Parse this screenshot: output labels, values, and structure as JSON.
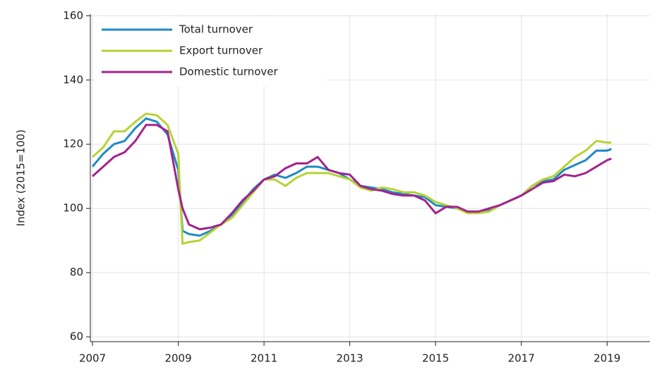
{
  "chart_data": {
    "type": "line",
    "y_label": "Index (2015=100)",
    "x": [
      2007,
      2007.25,
      2007.5,
      2007.75,
      2008,
      2008.25,
      2008.5,
      2008.75,
      2009,
      2009.1,
      2009.25,
      2009.5,
      2009.75,
      2010,
      2010.25,
      2010.5,
      2010.75,
      2011,
      2011.25,
      2011.5,
      2011.75,
      2012,
      2012.25,
      2012.5,
      2012.75,
      2013,
      2013.25,
      2013.5,
      2013.75,
      2014,
      2014.25,
      2014.5,
      2014.75,
      2015,
      2015.25,
      2015.5,
      2015.75,
      2016,
      2016.25,
      2016.5,
      2016.75,
      2017,
      2017.25,
      2017.5,
      2017.75,
      2018,
      2018.25,
      2018.5,
      2018.75,
      2019,
      2019.1
    ],
    "series": [
      {
        "name": "Total turnover",
        "color": "#1f8bc4",
        "values": [
          113,
          117,
          120,
          121,
          125,
          128,
          127,
          123,
          112,
          93,
          92,
          91.5,
          93,
          95,
          98,
          102,
          106,
          109,
          110.5,
          109.5,
          111,
          113,
          113,
          112,
          111,
          109,
          107,
          106.5,
          106,
          105,
          104.5,
          104,
          103.5,
          101,
          100.5,
          100,
          99,
          99,
          99.5,
          101,
          102.5,
          104,
          107,
          108.5,
          109,
          112,
          113.5,
          115,
          118,
          118,
          118.5
        ]
      },
      {
        "name": "Export turnover",
        "color": "#b5d334",
        "values": [
          116,
          119,
          124,
          124,
          127,
          129.5,
          129,
          126,
          117,
          89,
          89.5,
          90,
          92.5,
          95,
          97,
          101,
          105,
          109,
          109,
          107,
          109.5,
          111,
          111,
          111,
          110,
          109,
          106.5,
          105.5,
          106.5,
          106,
          105,
          105,
          104,
          102,
          101,
          100,
          98.5,
          98.5,
          99,
          101,
          102.5,
          104,
          107,
          109,
          110,
          113,
          116,
          118,
          121,
          120.5,
          120.5
        ]
      },
      {
        "name": "Domestic turnover",
        "color": "#a3238e",
        "values": [
          110,
          113,
          116,
          117.5,
          121,
          126,
          126,
          124,
          106,
          100,
          95,
          93.5,
          94,
          95,
          98.5,
          102.5,
          105.5,
          109,
          110,
          112.5,
          114,
          114,
          116,
          112,
          111,
          110.5,
          107,
          106,
          105.5,
          104.5,
          104,
          104,
          102.5,
          98.5,
          100.5,
          100.5,
          99,
          99,
          100,
          101,
          102.5,
          104,
          106,
          108,
          108.5,
          110.5,
          110,
          111,
          113,
          115,
          115.5
        ]
      }
    ],
    "xlim": [
      2006.95,
      2020
    ],
    "xticks": [
      2007,
      2009,
      2011,
      2013,
      2015,
      2017,
      2019
    ],
    "ylim": [
      58.5,
      160.5
    ],
    "yticks": [
      60,
      80,
      100,
      120,
      140,
      160
    ],
    "grid": true,
    "legend": "upper left"
  }
}
